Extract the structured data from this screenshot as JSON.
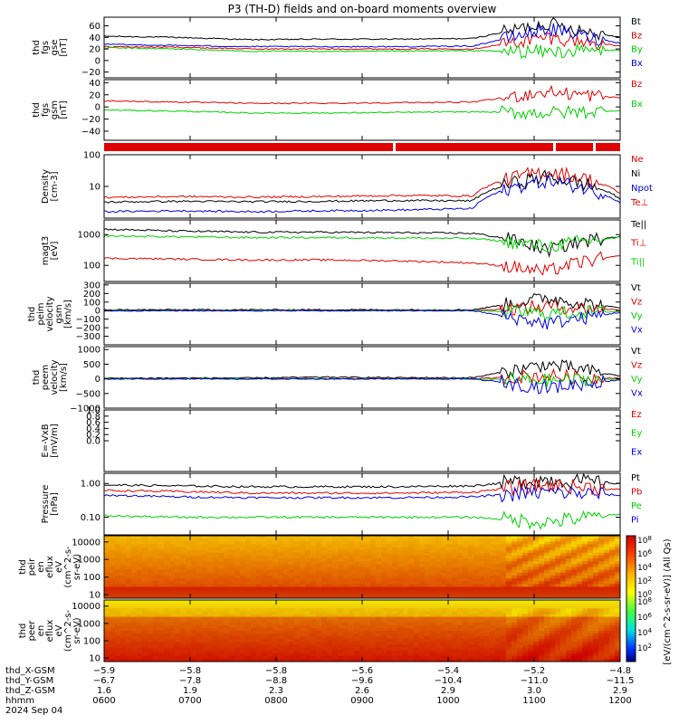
{
  "title": "P3 (TH-D) fields and on-board moments overview",
  "colors": {
    "black": "#000000",
    "red": "#e00000",
    "green": "#00d000",
    "blue": "#0000e0"
  },
  "chart_data": {
    "type": "line",
    "x_time_ticks": [
      "0600",
      "0700",
      "0800",
      "0900",
      "1000",
      "1100",
      "1200"
    ],
    "date_label": "2024 Sep 04",
    "panels": [
      {
        "id": "fgs-gse",
        "ylabel": [
          "thd",
          "fgs",
          "gse",
          "[nT]"
        ],
        "scale": "linear",
        "ylim": [
          -30,
          75
        ],
        "yticks": [
          "60",
          "40",
          "20",
          "0",
          "−20"
        ],
        "ytick_values": [
          60,
          40,
          20,
          0,
          -20
        ],
        "legend": [
          {
            "label": "Bt",
            "color": "#000000"
          },
          {
            "label": "Bz",
            "color": "#e00000"
          },
          {
            "label": "By",
            "color": "#00d000"
          },
          {
            "label": "Bx",
            "color": "#0000e0"
          }
        ],
        "series": [
          {
            "name": "Bt",
            "color": "#000000",
            "values": [
              42,
              40,
              36,
              37,
              37,
              38,
              65,
              40
            ]
          },
          {
            "name": "Bz",
            "color": "#e00000",
            "values": [
              24,
              23,
              20,
              20,
              20,
              20,
              40,
              25
            ]
          },
          {
            "name": "By",
            "color": "#00d000",
            "values": [
              22,
              20,
              16,
              16,
              16,
              17,
              15,
              18
            ]
          },
          {
            "name": "Bx",
            "color": "#0000e0",
            "values": [
              28,
              26,
              24,
              24,
              24,
              25,
              55,
              30
            ]
          }
        ]
      },
      {
        "id": "fgs-gsm",
        "ylabel": [
          "thd",
          "fgs",
          "gsm",
          "[nT]"
        ],
        "scale": "linear",
        "ylim": [
          -55,
          45
        ],
        "yticks": [
          "40",
          "20",
          "0",
          "−20",
          "−40"
        ],
        "ytick_values": [
          40,
          20,
          0,
          -20,
          -40
        ],
        "legend": [
          {
            "label": "Bz",
            "color": "#e00000"
          },
          {
            "label": "Bx",
            "color": "#00d000"
          }
        ],
        "series": [
          {
            "name": "Bz",
            "color": "#e00000",
            "values": [
              10,
              8,
              6,
              6,
              7,
              8,
              25,
              15
            ]
          },
          {
            "name": "Bx",
            "color": "#00d000",
            "values": [
              -5,
              -7,
              -10,
              -10,
              -9,
              -8,
              -10,
              -6
            ]
          }
        ]
      },
      {
        "id": "density",
        "ylabel": [
          "Density",
          "[cm-3]"
        ],
        "scale": "log",
        "ylim": [
          1,
          100
        ],
        "yticks": [
          "100",
          "10"
        ],
        "ytick_values": [
          100,
          10
        ],
        "legend": [
          {
            "label": "Ne",
            "color": "#e00000"
          },
          {
            "label": "Ni",
            "color": "#000000"
          },
          {
            "label": "Npot",
            "color": "#0000e0"
          },
          {
            "label": "Te⊥",
            "color": "#e00000"
          }
        ],
        "series": [
          {
            "name": "Ne",
            "color": "#e00000",
            "values": [
              4.5,
              4.8,
              4.6,
              4.8,
              5.2,
              5.0,
              30,
              6
            ]
          },
          {
            "name": "Ni",
            "color": "#000000",
            "values": [
              3.2,
              3.4,
              3.3,
              3.4,
              3.6,
              3.5,
              20,
              4
            ]
          },
          {
            "name": "Npot",
            "color": "#0000e0",
            "values": [
              1.6,
              1.7,
              1.6,
              1.7,
              1.8,
              2.0,
              15,
              3
            ]
          }
        ]
      },
      {
        "id": "temperature",
        "ylabel": [
          "magt3",
          "[eV]"
        ],
        "scale": "log",
        "ylim": [
          30,
          3000
        ],
        "yticks": [
          "1000",
          "100"
        ],
        "ytick_values": [
          1000,
          100
        ],
        "legend": [
          {
            "label": "Te||",
            "color": "#000000"
          },
          {
            "label": "Ti⊥",
            "color": "#e00000"
          },
          {
            "label": "Ti||",
            "color": "#00d000"
          }
        ],
        "series": [
          {
            "name": "Te||",
            "color": "#000000",
            "values": [
              1500,
              1300,
              1200,
              1200,
              1150,
              1100,
              300,
              900
            ]
          },
          {
            "name": "Ti⊥",
            "color": "#e00000",
            "values": [
              170,
              160,
              150,
              150,
              140,
              120,
              60,
              200
            ]
          },
          {
            "name": "Ti||",
            "color": "#00d000",
            "values": [
              900,
              850,
              800,
              800,
              780,
              750,
              400,
              800
            ]
          }
        ]
      },
      {
        "id": "peim-velocity",
        "ylabel": [
          "thd",
          "peim",
          "velocity",
          "gsm",
          "[km/s]"
        ],
        "scale": "linear",
        "ylim": [
          -400,
          320
        ],
        "yticks": [
          "300",
          "200",
          "100",
          "0",
          "−100",
          "−200",
          "−300"
        ],
        "ytick_values": [
          300,
          200,
          100,
          0,
          -100,
          -200,
          -300
        ],
        "legend": [
          {
            "label": "Vt",
            "color": "#000000"
          },
          {
            "label": "Vz",
            "color": "#e00000"
          },
          {
            "label": "Vy",
            "color": "#00d000"
          },
          {
            "label": "Vx",
            "color": "#0000e0"
          }
        ],
        "series": [
          {
            "name": "Vt",
            "color": "#000000",
            "values": [
              10,
              10,
              10,
              10,
              10,
              10,
              150,
              30
            ]
          },
          {
            "name": "Vz",
            "color": "#e00000",
            "values": [
              0,
              0,
              0,
              0,
              0,
              0,
              50,
              10
            ]
          },
          {
            "name": "Vy",
            "color": "#00d000",
            "values": [
              0,
              0,
              0,
              0,
              0,
              0,
              -30,
              -10
            ]
          },
          {
            "name": "Vx",
            "color": "#0000e0",
            "values": [
              0,
              0,
              0,
              0,
              0,
              0,
              -150,
              -20
            ]
          }
        ]
      },
      {
        "id": "peem-velocity",
        "ylabel": [
          "thd",
          "peem",
          "velocity",
          "[km/s]"
        ],
        "scale": "linear",
        "ylim": [
          -1000,
          1100
        ],
        "yticks": [
          "1000",
          "500",
          "0",
          "−500",
          "−1000"
        ],
        "ytick_values": [
          1000,
          500,
          0,
          -500,
          -1000
        ],
        "legend": [
          {
            "label": "Vt",
            "color": "#000000"
          },
          {
            "label": "Vz",
            "color": "#e00000"
          },
          {
            "label": "Vy",
            "color": "#00d000"
          },
          {
            "label": "Vx",
            "color": "#0000e0"
          }
        ],
        "series": [
          {
            "name": "Vt",
            "color": "#000000",
            "values": [
              20,
              30,
              30,
              60,
              40,
              40,
              500,
              100
            ]
          },
          {
            "name": "Vz",
            "color": "#e00000",
            "values": [
              0,
              0,
              0,
              0,
              0,
              0,
              100,
              20
            ]
          },
          {
            "name": "Vy",
            "color": "#00d000",
            "values": [
              0,
              0,
              0,
              0,
              0,
              0,
              -50,
              -10
            ]
          },
          {
            "name": "Vx",
            "color": "#0000e0",
            "values": [
              0,
              0,
              0,
              0,
              0,
              0,
              -300,
              -30
            ]
          }
        ]
      },
      {
        "id": "efield",
        "ylabel": [
          "E=-VxB",
          "[mV/m]"
        ],
        "scale": "linear",
        "ylim": [
          -1,
          1
        ],
        "yticks": [
          "1.0",
          "0.8",
          "0.6",
          "0.4",
          "0.2",
          "0.0"
        ],
        "ytick_values": [
          1.0,
          0.8,
          0.6,
          0.4,
          0.2,
          0.0
        ],
        "legend": [
          {
            "label": "Ez",
            "color": "#e00000"
          },
          {
            "label": "Ey",
            "color": "#00d000"
          },
          {
            "label": "Ex",
            "color": "#0000e0"
          }
        ],
        "series": []
      },
      {
        "id": "pressure",
        "ylabel": [
          "Pressure",
          "[nPa]"
        ],
        "scale": "log",
        "ylim": [
          0.03,
          2
        ],
        "yticks": [
          "1.00",
          "0.10"
        ],
        "ytick_values": [
          1.0,
          0.1
        ],
        "legend": [
          {
            "label": "Pt",
            "color": "#000000"
          },
          {
            "label": "Pb",
            "color": "#e00000"
          },
          {
            "label": "Pe",
            "color": "#00d000"
          },
          {
            "label": "Pi",
            "color": "#0000e0"
          }
        ],
        "series": [
          {
            "name": "Pt",
            "color": "#000000",
            "values": [
              0.9,
              0.85,
              0.8,
              0.8,
              0.8,
              0.85,
              1.3,
              1.0
            ]
          },
          {
            "name": "Pb",
            "color": "#e00000",
            "values": [
              0.62,
              0.58,
              0.52,
              0.52,
              0.52,
              0.55,
              0.9,
              0.65
            ]
          },
          {
            "name": "Pe",
            "color": "#00d000",
            "values": [
              0.11,
              0.1,
              0.1,
              0.1,
              0.1,
              0.1,
              0.07,
              0.12
            ]
          },
          {
            "name": "Pi",
            "color": "#0000e0",
            "values": [
              0.45,
              0.4,
              0.38,
              0.38,
              0.38,
              0.4,
              0.55,
              0.45
            ]
          }
        ]
      },
      {
        "id": "peir-spectrogram",
        "type": "heatmap",
        "ylabel": [
          "thd",
          "peir",
          "en",
          "eflux",
          "eV",
          "(cm^2-s-",
          "sr-eV)"
        ],
        "scale": "log",
        "yticks": [
          "10000",
          "1000",
          "100",
          "10"
        ],
        "ytick_values": [
          10000,
          1000,
          100,
          10
        ]
      },
      {
        "id": "peer-spectrogram",
        "type": "heatmap",
        "ylabel": [
          "thd",
          "peer",
          "en",
          "eflux",
          "eV",
          "(cm^2-s-",
          "sr-eV)"
        ],
        "scale": "log",
        "yticks": [
          "10000",
          "1000",
          "100",
          "10"
        ],
        "ytick_values": [
          10000,
          1000,
          100,
          10
        ]
      }
    ],
    "colorbar": {
      "label": "[eV/(cm^2-s-sr-eV)] (All Qs)",
      "ticks_upper": [
        "10^8",
        "10^6",
        "10^4",
        "10^2",
        "10^0"
      ],
      "ticks_lower": [
        "10^8",
        "10^6",
        "10^4",
        "10^2"
      ]
    },
    "orbit_rows": [
      {
        "label": "thd_X-GSM",
        "values": [
          "−5.9",
          "−5.8",
          "−5.8",
          "−5.6",
          "−5.4",
          "−5.2",
          "−4.8"
        ]
      },
      {
        "label": "thd_Y-GSM",
        "values": [
          "−6.7",
          "−7.8",
          "−8.8",
          "−9.6",
          "−10.4",
          "−11.0",
          "−11.5"
        ]
      },
      {
        "label": "thd_Z-GSM",
        "values": [
          "1.6",
          "1.9",
          "2.3",
          "2.6",
          "2.9",
          "3.0",
          "2.9"
        ]
      },
      {
        "label": "hhmm",
        "values": [
          "0600",
          "0700",
          "0800",
          "0900",
          "1000",
          "1100",
          "1200"
        ]
      },
      {
        "label": "2024 Sep 04",
        "values": []
      }
    ]
  }
}
